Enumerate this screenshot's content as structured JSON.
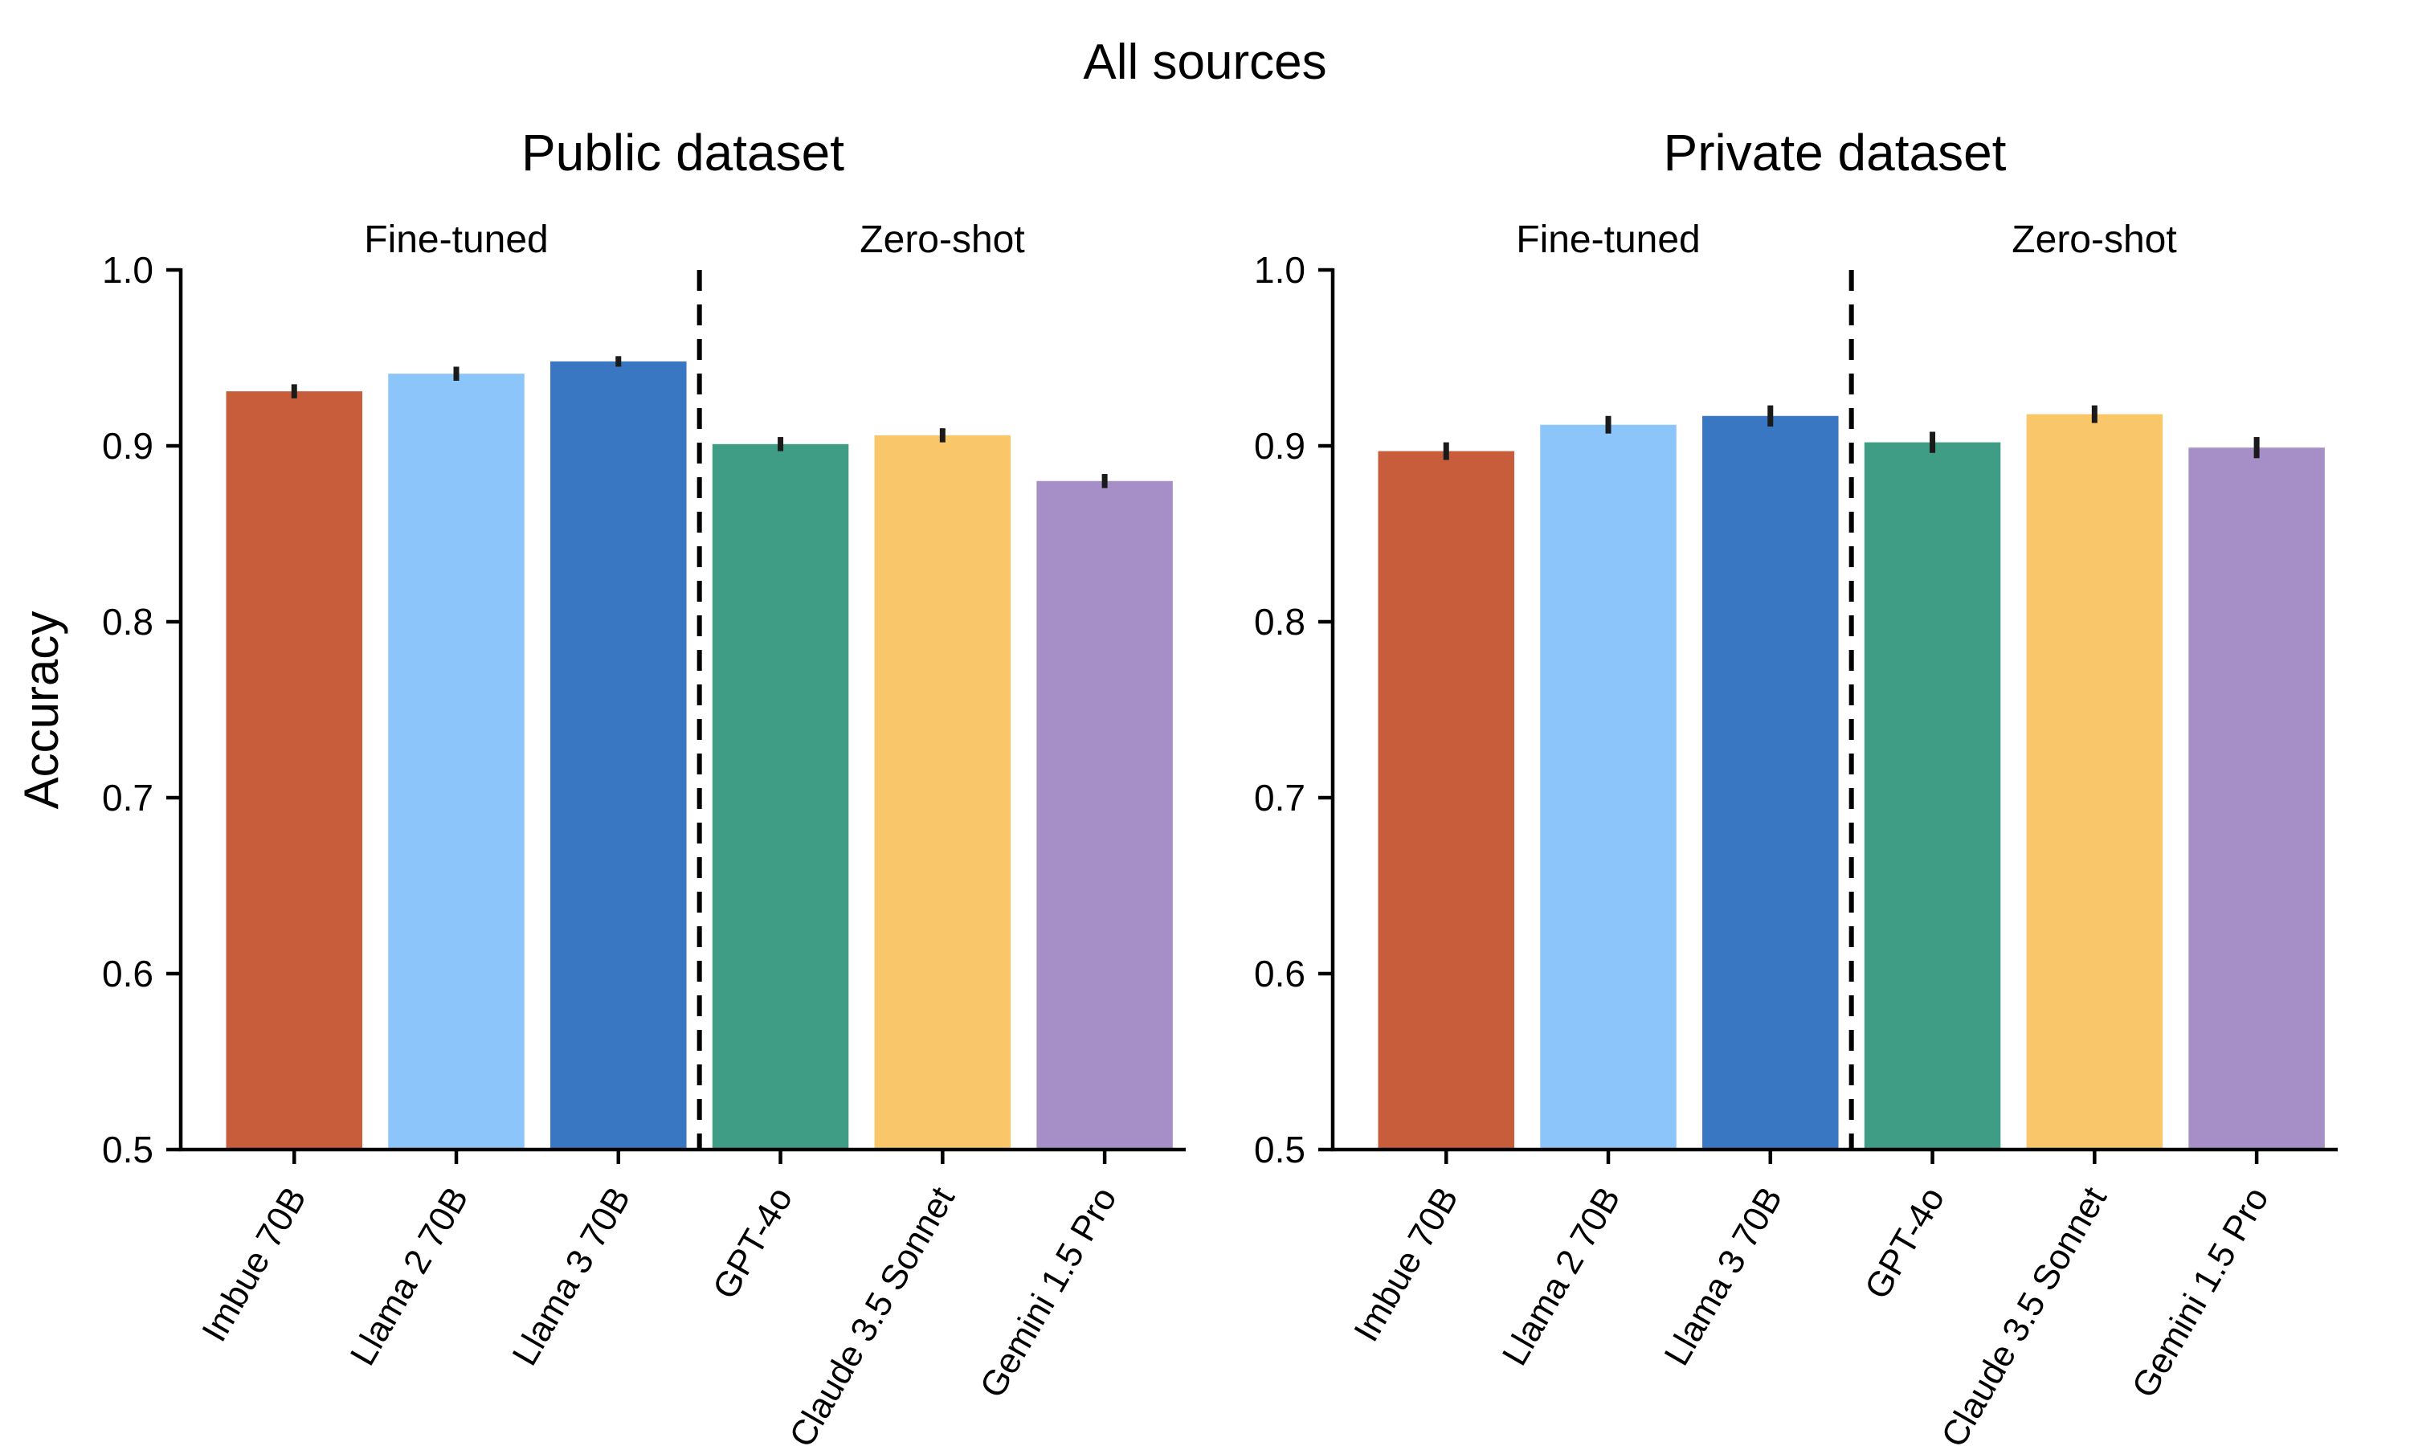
{
  "figure": {
    "suptitle": "All sources",
    "ylabel": "Accuracy",
    "background_color": "#ffffff",
    "axis_color": "#000000",
    "errorbar_color": "#1a1a1a",
    "separator_color": "#000000"
  },
  "chart_data": [
    {
      "type": "bar",
      "title": "Public dataset",
      "categories": [
        "Imbue 70B",
        "Llama 2 70B",
        "Llama 3 70B",
        "GPT-4o",
        "Claude 3.5 Sonnet",
        "Gemini 1.5 Pro"
      ],
      "values": [
        0.931,
        0.941,
        0.948,
        0.901,
        0.906,
        0.88
      ],
      "errors": [
        0.004,
        0.004,
        0.003,
        0.004,
        0.004,
        0.004
      ],
      "colors": [
        "#C75D3A",
        "#8CC5FA",
        "#3A77C2",
        "#3E9D84",
        "#F9C669",
        "#A68FC6"
      ],
      "groups": [
        {
          "label": "Fine-tuned",
          "bar_indices": [
            0,
            1,
            2
          ]
        },
        {
          "label": "Zero-shot",
          "bar_indices": [
            3,
            4,
            5
          ]
        }
      ],
      "separator": {
        "style": "dashed",
        "after_category_index": 2
      },
      "ylabel": "Accuracy",
      "ylim": [
        0.5,
        1.0
      ],
      "yticks": [
        1.0,
        0.9,
        0.8,
        0.7,
        0.6,
        0.5
      ],
      "ytick_labels": [
        "1.0",
        "0.9",
        "0.8",
        "0.7",
        "0.6",
        "0.5"
      ],
      "xtick_rotation_deg": 60,
      "grid": false,
      "legend": "none"
    },
    {
      "type": "bar",
      "title": "Private dataset",
      "categories": [
        "Imbue 70B",
        "Llama 2 70B",
        "Llama 3 70B",
        "GPT-4o",
        "Claude 3.5 Sonnet",
        "Gemini 1.5 Pro"
      ],
      "values": [
        0.897,
        0.912,
        0.917,
        0.902,
        0.918,
        0.899
      ],
      "errors": [
        0.005,
        0.005,
        0.006,
        0.006,
        0.005,
        0.006
      ],
      "colors": [
        "#C75D3A",
        "#8CC5FA",
        "#3A77C2",
        "#3E9D84",
        "#F9C669",
        "#A68FC6"
      ],
      "groups": [
        {
          "label": "Fine-tuned",
          "bar_indices": [
            0,
            1,
            2
          ]
        },
        {
          "label": "Zero-shot",
          "bar_indices": [
            3,
            4,
            5
          ]
        }
      ],
      "separator": {
        "style": "dashed",
        "after_category_index": 2
      },
      "ylabel": "Accuracy",
      "ylim": [
        0.5,
        1.0
      ],
      "yticks": [
        1.0,
        0.9,
        0.8,
        0.7,
        0.6,
        0.5
      ],
      "ytick_labels": [
        "1.0",
        "0.9",
        "0.8",
        "0.7",
        "0.6",
        "0.5"
      ],
      "xtick_rotation_deg": 60,
      "grid": false,
      "legend": "none"
    }
  ]
}
